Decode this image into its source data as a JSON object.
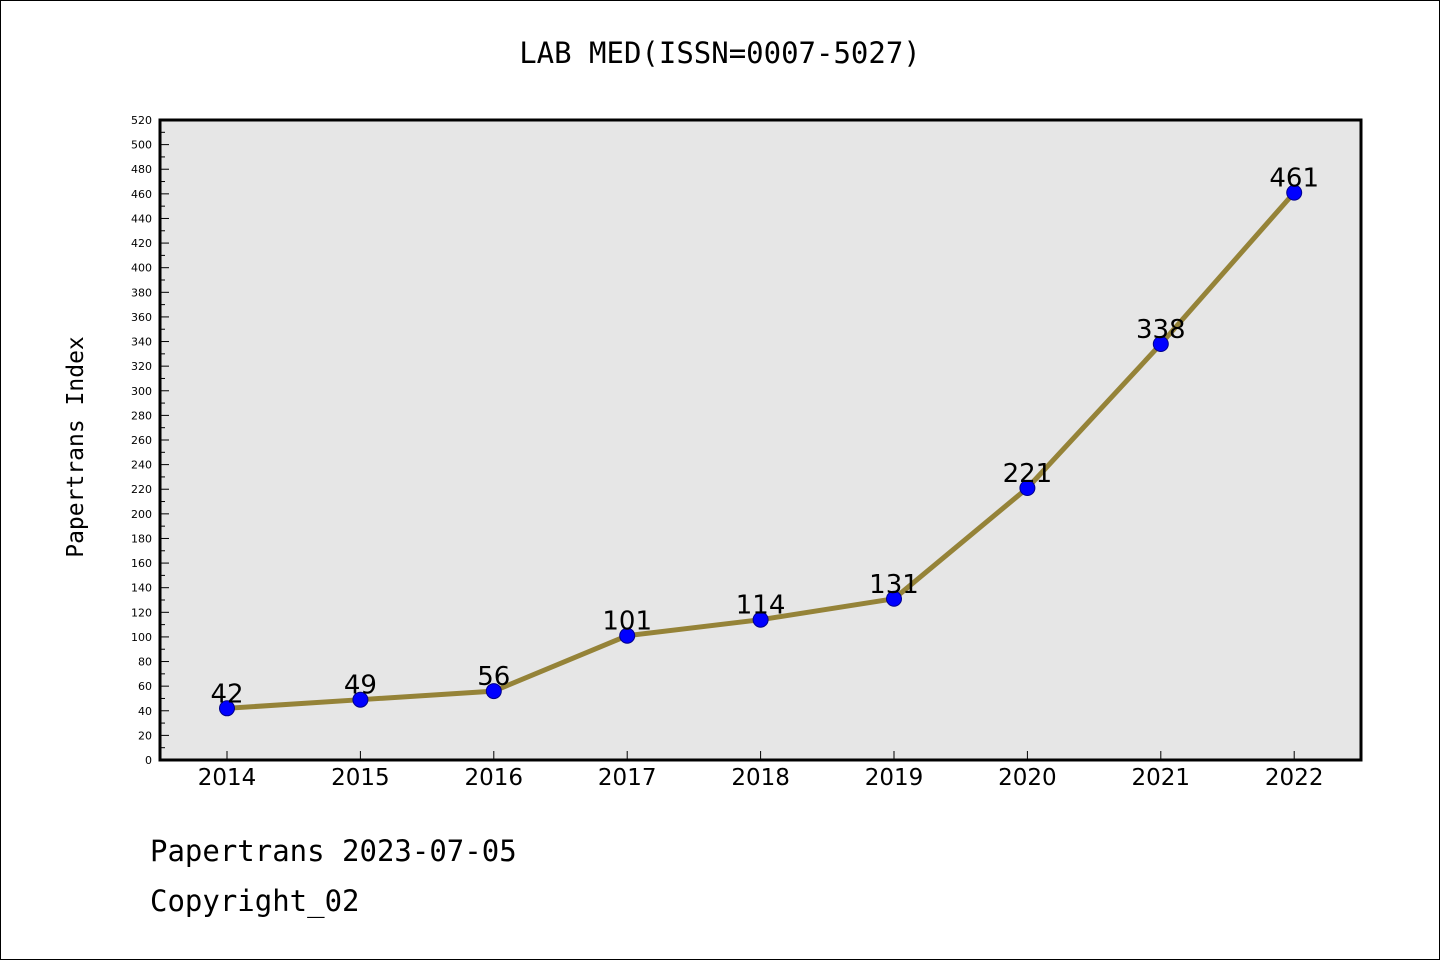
{
  "page": {
    "title": "LAB MED(ISSN=0007-5027)",
    "footer_date": "Papertrans 2023-07-05",
    "footer_copyright": "Copyright_02"
  },
  "colors": {
    "plot_background": "#e6e6e6",
    "line": "#958338",
    "marker_fill": "#0000ff",
    "marker_stroke": "#00008b",
    "axis": "#000000"
  },
  "chart_data": {
    "type": "line",
    "title": "LAB MED(ISSN=0007-5027)",
    "xlabel": "",
    "ylabel": "Papertrans Index",
    "categories": [
      "2014",
      "2015",
      "2016",
      "2017",
      "2018",
      "2019",
      "2020",
      "2021",
      "2022"
    ],
    "series": [
      {
        "values": [
          42,
          49,
          56,
          101,
          114,
          131,
          221,
          338,
          461
        ],
        "data_labels": [
          "42",
          "49",
          "56",
          "101",
          "114",
          "131",
          "221",
          "338",
          "461"
        ]
      }
    ],
    "ylim": [
      0,
      520
    ],
    "ytick_step": 20,
    "yticks": [
      "0",
      "20",
      "40",
      "60",
      "80",
      "100",
      "120",
      "140",
      "160",
      "180",
      "200",
      "220",
      "240",
      "260",
      "280",
      "300",
      "320",
      "340",
      "360",
      "380",
      "400",
      "420",
      "440",
      "460",
      "480",
      "500",
      "520"
    ],
    "grid": false,
    "legend": "none"
  }
}
